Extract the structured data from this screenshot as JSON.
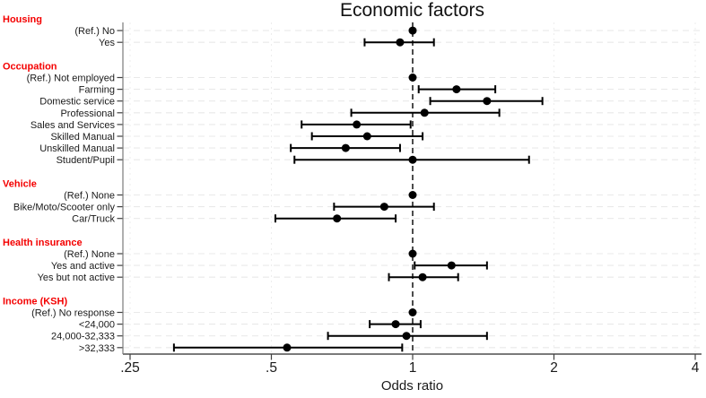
{
  "chart_data": {
    "type": "scatter",
    "subtype": "forest-plot",
    "title": "Economic factors",
    "xlabel": "Odds ratio",
    "x_scale": "log",
    "xlim": [
      0.25,
      4
    ],
    "x_ticks": [
      0.25,
      0.5,
      1,
      2,
      4
    ],
    "x_tick_labels": [
      ".25",
      ".5",
      "1",
      "2",
      "4"
    ],
    "ref_line": 1,
    "grid": "horizontal dashed per row + vertical dashed per tick",
    "legend": "none",
    "groups": [
      {
        "header": "Housing",
        "items": [
          {
            "label": "(Ref.) No",
            "or": 1.0,
            "ref": true
          },
          {
            "label": "Yes",
            "or": 0.94,
            "lo": 0.79,
            "hi": 1.11
          }
        ]
      },
      {
        "header": "Occupation",
        "items": [
          {
            "label": "(Ref.) Not employed",
            "or": 1.0,
            "ref": true
          },
          {
            "label": "Farming",
            "or": 1.24,
            "lo": 1.03,
            "hi": 1.5
          },
          {
            "label": "Domestic service",
            "or": 1.44,
            "lo": 1.09,
            "hi": 1.89
          },
          {
            "label": "Professional",
            "or": 1.06,
            "lo": 0.74,
            "hi": 1.53
          },
          {
            "label": "Sales and Services",
            "or": 0.76,
            "lo": 0.58,
            "hi": 0.99
          },
          {
            "label": "Skilled Manual",
            "or": 0.8,
            "lo": 0.61,
            "hi": 1.05
          },
          {
            "label": "Unskilled Manual",
            "or": 0.72,
            "lo": 0.55,
            "hi": 0.94
          },
          {
            "label": "Student/Pupil",
            "or": 1.0,
            "lo": 0.56,
            "hi": 1.77
          }
        ]
      },
      {
        "header": "Vehicle",
        "items": [
          {
            "label": "(Ref.) None",
            "or": 1.0,
            "ref": true
          },
          {
            "label": "Bike/Moto/Scooter only",
            "or": 0.87,
            "lo": 0.68,
            "hi": 1.11
          },
          {
            "label": "Car/Truck",
            "or": 0.69,
            "lo": 0.51,
            "hi": 0.92
          }
        ]
      },
      {
        "header": "Health insurance",
        "items": [
          {
            "label": "(Ref.) None",
            "or": 1.0,
            "ref": true
          },
          {
            "label": "Yes and active",
            "or": 1.21,
            "lo": 1.01,
            "hi": 1.44
          },
          {
            "label": "Yes but not active",
            "or": 1.05,
            "lo": 0.89,
            "hi": 1.25
          }
        ]
      },
      {
        "header": "Income (KSH)",
        "items": [
          {
            "label": "(Ref.) No response",
            "or": 1.0,
            "ref": true
          },
          {
            "label": "<24,000",
            "or": 0.92,
            "lo": 0.81,
            "hi": 1.04
          },
          {
            "label": "24,000-32,333",
            "or": 0.97,
            "lo": 0.66,
            "hi": 1.44
          },
          {
            "label": ">32,333",
            "or": 0.54,
            "lo": 0.31,
            "hi": 0.95
          }
        ]
      }
    ]
  },
  "colors": {
    "header_text": "#f40000",
    "item_text": "#1a1a1a",
    "marker": "#000000",
    "ref_line": "#000000",
    "grid_h": "#e9e9e9",
    "grid_v": "#ededed",
    "axis": "#7a7a7a",
    "tick": "#404040",
    "background": "#ffffff"
  }
}
